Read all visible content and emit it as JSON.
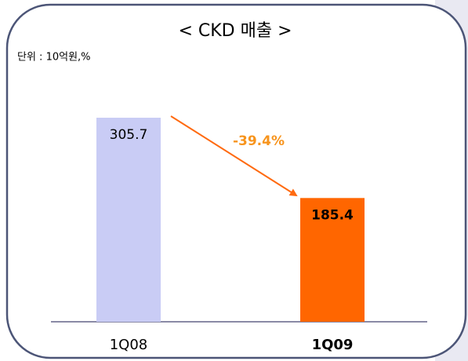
{
  "chart_data": {
    "type": "bar",
    "title": "< CKD 매출 >",
    "subtitle": "단위 : 10억원,%",
    "categories": [
      "1Q08",
      "1Q09"
    ],
    "values": [
      305.7,
      185.4
    ],
    "colors": [
      "#c9ccf5",
      "#ff6600"
    ],
    "annotation": "-39.4%",
    "annotation_color": "#f7941d"
  }
}
